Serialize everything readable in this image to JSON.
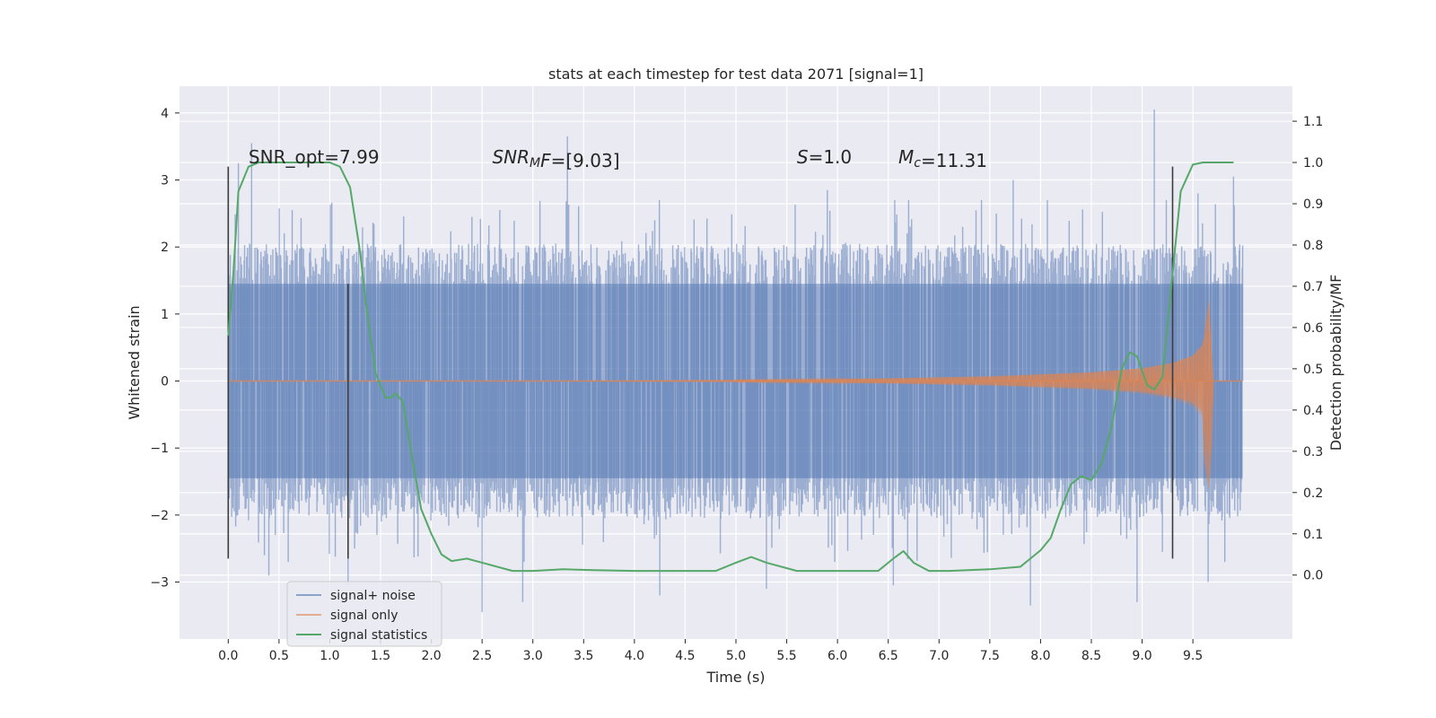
{
  "chart_data": {
    "type": "line",
    "title": "stats at each timestep for test data 2071 [signal=1]",
    "xlabel": "Time (s)",
    "ylabel": "Whitened strain",
    "y2label": "Detection probability/MF",
    "xlim": [
      -0.48,
      10.48
    ],
    "ylim": [
      -3.85,
      4.4
    ],
    "y2lim": [
      -0.155,
      1.185
    ],
    "xticks": [
      "0.0",
      "0.5",
      "1.0",
      "1.5",
      "2.0",
      "2.5",
      "3.0",
      "3.5",
      "4.0",
      "4.5",
      "5.0",
      "5.5",
      "6.0",
      "6.5",
      "7.0",
      "7.5",
      "8.0",
      "8.5",
      "9.0",
      "9.5"
    ],
    "yticks": [
      "−3",
      "−2",
      "−1",
      "0",
      "1",
      "2",
      "3",
      "4"
    ],
    "y2ticks": [
      "0.0",
      "0.1",
      "0.2",
      "0.3",
      "0.4",
      "0.5",
      "0.6",
      "0.7",
      "0.8",
      "0.9",
      "1.0",
      "1.1"
    ],
    "grid": true,
    "legend_position": "lower-left",
    "annotations": [
      {
        "parts": [
          {
            "t": "SNR_opt=7.99",
            "i": false
          }
        ],
        "x": 0.2,
        "y": 3.25
      },
      {
        "parts": [
          {
            "t": "SNR",
            "i": true
          },
          {
            "t": "M",
            "i": true,
            "sub": true
          },
          {
            "t": "F",
            "i": true
          },
          {
            "t": "=[9.03]",
            "i": false
          }
        ],
        "x": 2.6,
        "y": 3.25
      },
      {
        "parts": [
          {
            "t": "S",
            "i": true
          },
          {
            "t": "=1.0",
            "i": false
          }
        ],
        "x": 5.6,
        "y": 3.25
      },
      {
        "parts": [
          {
            "t": "M",
            "i": true
          },
          {
            "t": "c",
            "i": true,
            "sub": true
          },
          {
            "t": "=11.31",
            "i": false
          }
        ],
        "x": 6.6,
        "y": 3.25
      }
    ],
    "vlines": [
      {
        "x": 0.0,
        "ymin": -2.65,
        "ymax": 3.2
      },
      {
        "x": 1.18,
        "ymin": -2.65,
        "ymax": 1.45
      },
      {
        "x": 9.3,
        "ymin": -2.65,
        "ymax": 3.2
      }
    ],
    "series": [
      {
        "name": "signal+ noise",
        "color": "#4c72b0",
        "opacity": 0.5,
        "axis": "left",
        "x_range": [
          0.0,
          9.99
        ],
        "samples": 2048,
        "band": [
          -1.45,
          1.45
        ],
        "spikes": [
          {
            "x": 0.1,
            "y": 3.25
          },
          {
            "x": 0.23,
            "y": 3.55
          },
          {
            "x": 0.63,
            "y": 2.55
          },
          {
            "x": 1.45,
            "y": 2.0
          },
          {
            "x": 2.4,
            "y": 2.45
          },
          {
            "x": 3.34,
            "y": 3.65
          },
          {
            "x": 4.2,
            "y": 2.4
          },
          {
            "x": 5.9,
            "y": 2.85
          },
          {
            "x": 7.73,
            "y": 3.0
          },
          {
            "x": 9.12,
            "y": 4.05
          },
          {
            "x": 9.55,
            "y": 2.8
          },
          {
            "x": 9.9,
            "y": 3.05
          },
          {
            "x": 0.4,
            "y": -2.9
          },
          {
            "x": 1.18,
            "y": -3.05
          },
          {
            "x": 2.5,
            "y": -3.45
          },
          {
            "x": 2.9,
            "y": -3.3
          },
          {
            "x": 4.25,
            "y": -3.2
          },
          {
            "x": 5.3,
            "y": -3.1
          },
          {
            "x": 6.55,
            "y": -3.05
          },
          {
            "x": 7.9,
            "y": -3.35
          },
          {
            "x": 8.95,
            "y": -3.3
          },
          {
            "x": 9.2,
            "y": -2.55
          },
          {
            "x": 9.65,
            "y": -3.0
          }
        ]
      },
      {
        "name": "signal only",
        "color": "#dd8452",
        "opacity": 0.6,
        "axis": "left",
        "x_range": [
          0.0,
          9.99
        ],
        "envelope_t": [
          0.0,
          3.0,
          5.0,
          6.5,
          7.5,
          8.5,
          9.0,
          9.3,
          9.5,
          9.6,
          9.66,
          9.7,
          9.99
        ],
        "envelope_a": [
          0.0,
          0.0,
          0.02,
          0.04,
          0.07,
          0.13,
          0.19,
          0.27,
          0.38,
          0.55,
          1.25,
          0.0,
          0.0
        ]
      },
      {
        "name": "signal statistics",
        "color": "#55a868",
        "opacity": 1.0,
        "axis": "right",
        "x": [
          0.0,
          0.05,
          0.1,
          0.2,
          0.3,
          0.5,
          0.8,
          1.0,
          1.1,
          1.2,
          1.3,
          1.35,
          1.45,
          1.55,
          1.6,
          1.65,
          1.72,
          1.8,
          1.9,
          2.0,
          2.1,
          2.2,
          2.35,
          2.5,
          2.8,
          3.0,
          3.3,
          3.6,
          4.0,
          4.4,
          4.8,
          5.0,
          5.15,
          5.3,
          5.6,
          6.0,
          6.4,
          6.55,
          6.65,
          6.75,
          6.9,
          7.1,
          7.5,
          7.8,
          8.0,
          8.1,
          8.2,
          8.3,
          8.4,
          8.5,
          8.6,
          8.7,
          8.8,
          8.88,
          8.95,
          9.05,
          9.12,
          9.2,
          9.3,
          9.38,
          9.5,
          9.6,
          9.9
        ],
        "y": [
          0.58,
          0.73,
          0.93,
          0.99,
          1.0,
          1.0,
          1.0,
          1.0,
          0.99,
          0.94,
          0.78,
          0.67,
          0.49,
          0.43,
          0.43,
          0.44,
          0.42,
          0.3,
          0.16,
          0.1,
          0.05,
          0.034,
          0.04,
          0.03,
          0.01,
          0.01,
          0.014,
          0.012,
          0.01,
          0.01,
          0.01,
          0.03,
          0.044,
          0.03,
          0.01,
          0.01,
          0.01,
          0.04,
          0.058,
          0.03,
          0.01,
          0.01,
          0.014,
          0.02,
          0.06,
          0.09,
          0.16,
          0.22,
          0.24,
          0.23,
          0.27,
          0.36,
          0.5,
          0.54,
          0.53,
          0.46,
          0.45,
          0.48,
          0.73,
          0.93,
          0.995,
          1.0,
          1.0
        ]
      }
    ]
  }
}
